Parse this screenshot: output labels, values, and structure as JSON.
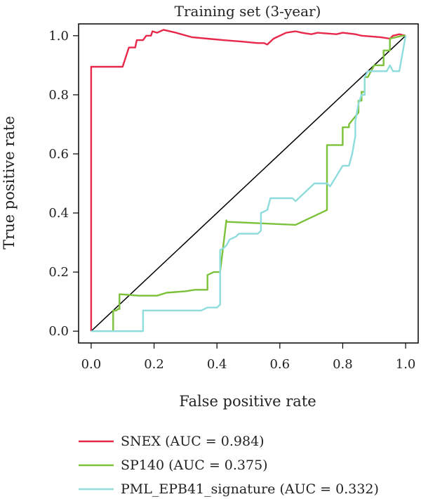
{
  "chart_data": {
    "type": "line",
    "title": "Training set (3-year)",
    "xlabel": "False positive rate",
    "ylabel": "True positive rate",
    "xlim": [
      -0.04,
      1.04
    ],
    "ylim": [
      -0.04,
      1.04
    ],
    "xticks": [
      "0.0",
      "0.2",
      "0.4",
      "0.6",
      "0.8",
      "1.0"
    ],
    "yticks": [
      "0.0",
      "0.2",
      "0.4",
      "0.6",
      "0.8",
      "1.0"
    ],
    "grid": false,
    "legend_position": "bottom",
    "diagonal": {
      "x": [
        0,
        1
      ],
      "y": [
        0,
        1
      ],
      "color": "#000000"
    },
    "series": [
      {
        "name": "SNEX (AUC = 0.984)",
        "color": "#e8284a",
        "x": [
          0,
          0,
          0.1,
          0.12,
          0.14,
          0.145,
          0.165,
          0.175,
          0.19,
          0.195,
          0.21,
          0.23,
          0.27,
          0.32,
          0.37,
          0.42,
          0.48,
          0.53,
          0.55,
          0.56,
          0.58,
          0.6,
          0.62,
          0.65,
          0.67,
          0.7,
          0.72,
          0.78,
          0.8,
          0.84,
          0.86,
          0.92,
          0.95,
          0.96,
          0.98,
          1.0
        ],
        "y": [
          0,
          0.895,
          0.895,
          0.96,
          0.96,
          0.985,
          0.985,
          1.0,
          1.0,
          1.015,
          1.01,
          1.02,
          1.01,
          0.995,
          0.99,
          0.985,
          0.98,
          0.975,
          0.975,
          0.97,
          0.99,
          1.0,
          1.01,
          1.015,
          1.01,
          1.005,
          1.01,
          1.005,
          1.01,
          1.005,
          1.0,
          0.995,
          0.99,
          1.0,
          1.005,
          1.0
        ]
      },
      {
        "name": "SP140 (AUC = 0.375)",
        "color": "#7cc13a",
        "x": [
          0.07,
          0.07,
          0.08,
          0.085,
          0.09,
          0.09,
          0.15,
          0.21,
          0.24,
          0.3,
          0.33,
          0.35,
          0.37,
          0.37,
          0.39,
          0.39,
          0.41,
          0.43,
          0.43,
          0.65,
          0.75,
          0.75,
          0.8,
          0.8,
          0.82,
          0.82,
          0.85,
          0.85,
          0.86,
          0.86,
          0.87,
          0.87,
          0.88,
          0.88,
          0.9,
          0.93,
          0.93,
          0.95,
          0.95,
          0.99,
          1.0
        ],
        "y": [
          0.0,
          0.07,
          0.07,
          0.075,
          0.075,
          0.125,
          0.12,
          0.12,
          0.13,
          0.135,
          0.14,
          0.14,
          0.14,
          0.19,
          0.2,
          0.2,
          0.2,
          0.375,
          0.37,
          0.36,
          0.41,
          0.63,
          0.63,
          0.69,
          0.69,
          0.7,
          0.74,
          0.78,
          0.78,
          0.81,
          0.81,
          0.86,
          0.86,
          0.86,
          0.9,
          0.9,
          0.95,
          0.95,
          0.99,
          1.0,
          1.0
        ]
      },
      {
        "name": "PML_EPB41_signature (AUC = 0.332)",
        "color": "#8fdcdc",
        "x": [
          0.0,
          0.165,
          0.165,
          0.35,
          0.37,
          0.38,
          0.4,
          0.41,
          0.41,
          0.42,
          0.43,
          0.44,
          0.46,
          0.47,
          0.5,
          0.53,
          0.54,
          0.54,
          0.56,
          0.57,
          0.58,
          0.64,
          0.65,
          0.67,
          0.71,
          0.72,
          0.75,
          0.76,
          0.8,
          0.82,
          0.83,
          0.84,
          0.84,
          0.85,
          0.86,
          0.87,
          0.87,
          0.88,
          0.9,
          0.94,
          0.95,
          0.96,
          0.98,
          1.0
        ],
        "y": [
          0.0,
          0.0,
          0.07,
          0.07,
          0.08,
          0.08,
          0.08,
          0.09,
          0.275,
          0.28,
          0.29,
          0.31,
          0.32,
          0.33,
          0.33,
          0.33,
          0.34,
          0.4,
          0.41,
          0.45,
          0.45,
          0.45,
          0.44,
          0.46,
          0.5,
          0.5,
          0.5,
          0.49,
          0.56,
          0.56,
          0.6,
          0.66,
          0.71,
          0.77,
          0.8,
          0.8,
          0.86,
          0.88,
          0.88,
          0.88,
          0.9,
          0.88,
          0.88,
          1.0
        ]
      }
    ]
  }
}
